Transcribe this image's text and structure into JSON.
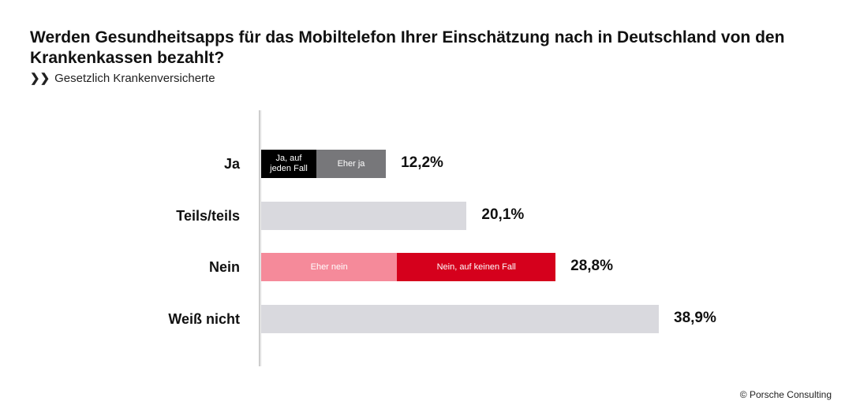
{
  "title": "Werden Gesundheitsapps für das Mobiltelefon Ihrer Einschätzung nach in Deutschland von den Krankenkassen bezahlt?",
  "subtitle_icon": "double-chevron-right-icon",
  "subtitle": "Gesetzlich Krankenversicherte",
  "copyright": "© Porsche Consulting",
  "chart_data": {
    "type": "bar",
    "orientation": "horizontal",
    "stacked": true,
    "title": "Werden Gesundheitsapps für das Mobiltelefon Ihrer Einschätzung nach in Deutschland von den Krankenkassen bezahlt?",
    "subtitle": "Gesetzlich Krankenversicherte",
    "categories": [
      "Ja",
      "Teils/teils",
      "Nein",
      "Weiß nicht"
    ],
    "totals": [
      12.2,
      20.1,
      28.8,
      38.9
    ],
    "total_labels": [
      "12,2%",
      "20,1%",
      "28,8%",
      "38,9%"
    ],
    "segments": [
      [
        {
          "label": "Ja, auf jeden Fall",
          "value": 5.4,
          "color": "#000000"
        },
        {
          "label": "Eher ja",
          "value": 6.8,
          "color": "#77777a"
        }
      ],
      [
        {
          "label": "",
          "value": 20.1,
          "color": "#d9d9de"
        }
      ],
      [
        {
          "label": "Eher nein",
          "value": 13.3,
          "color": "#f58a9a"
        },
        {
          "label": "Nein, auf keinen Fall",
          "value": 15.5,
          "color": "#d5001c"
        }
      ],
      [
        {
          "label": "",
          "value": 38.9,
          "color": "#d9d9de"
        }
      ]
    ],
    "xlim": [
      0,
      38.9
    ],
    "grid": false,
    "legend": "none"
  }
}
